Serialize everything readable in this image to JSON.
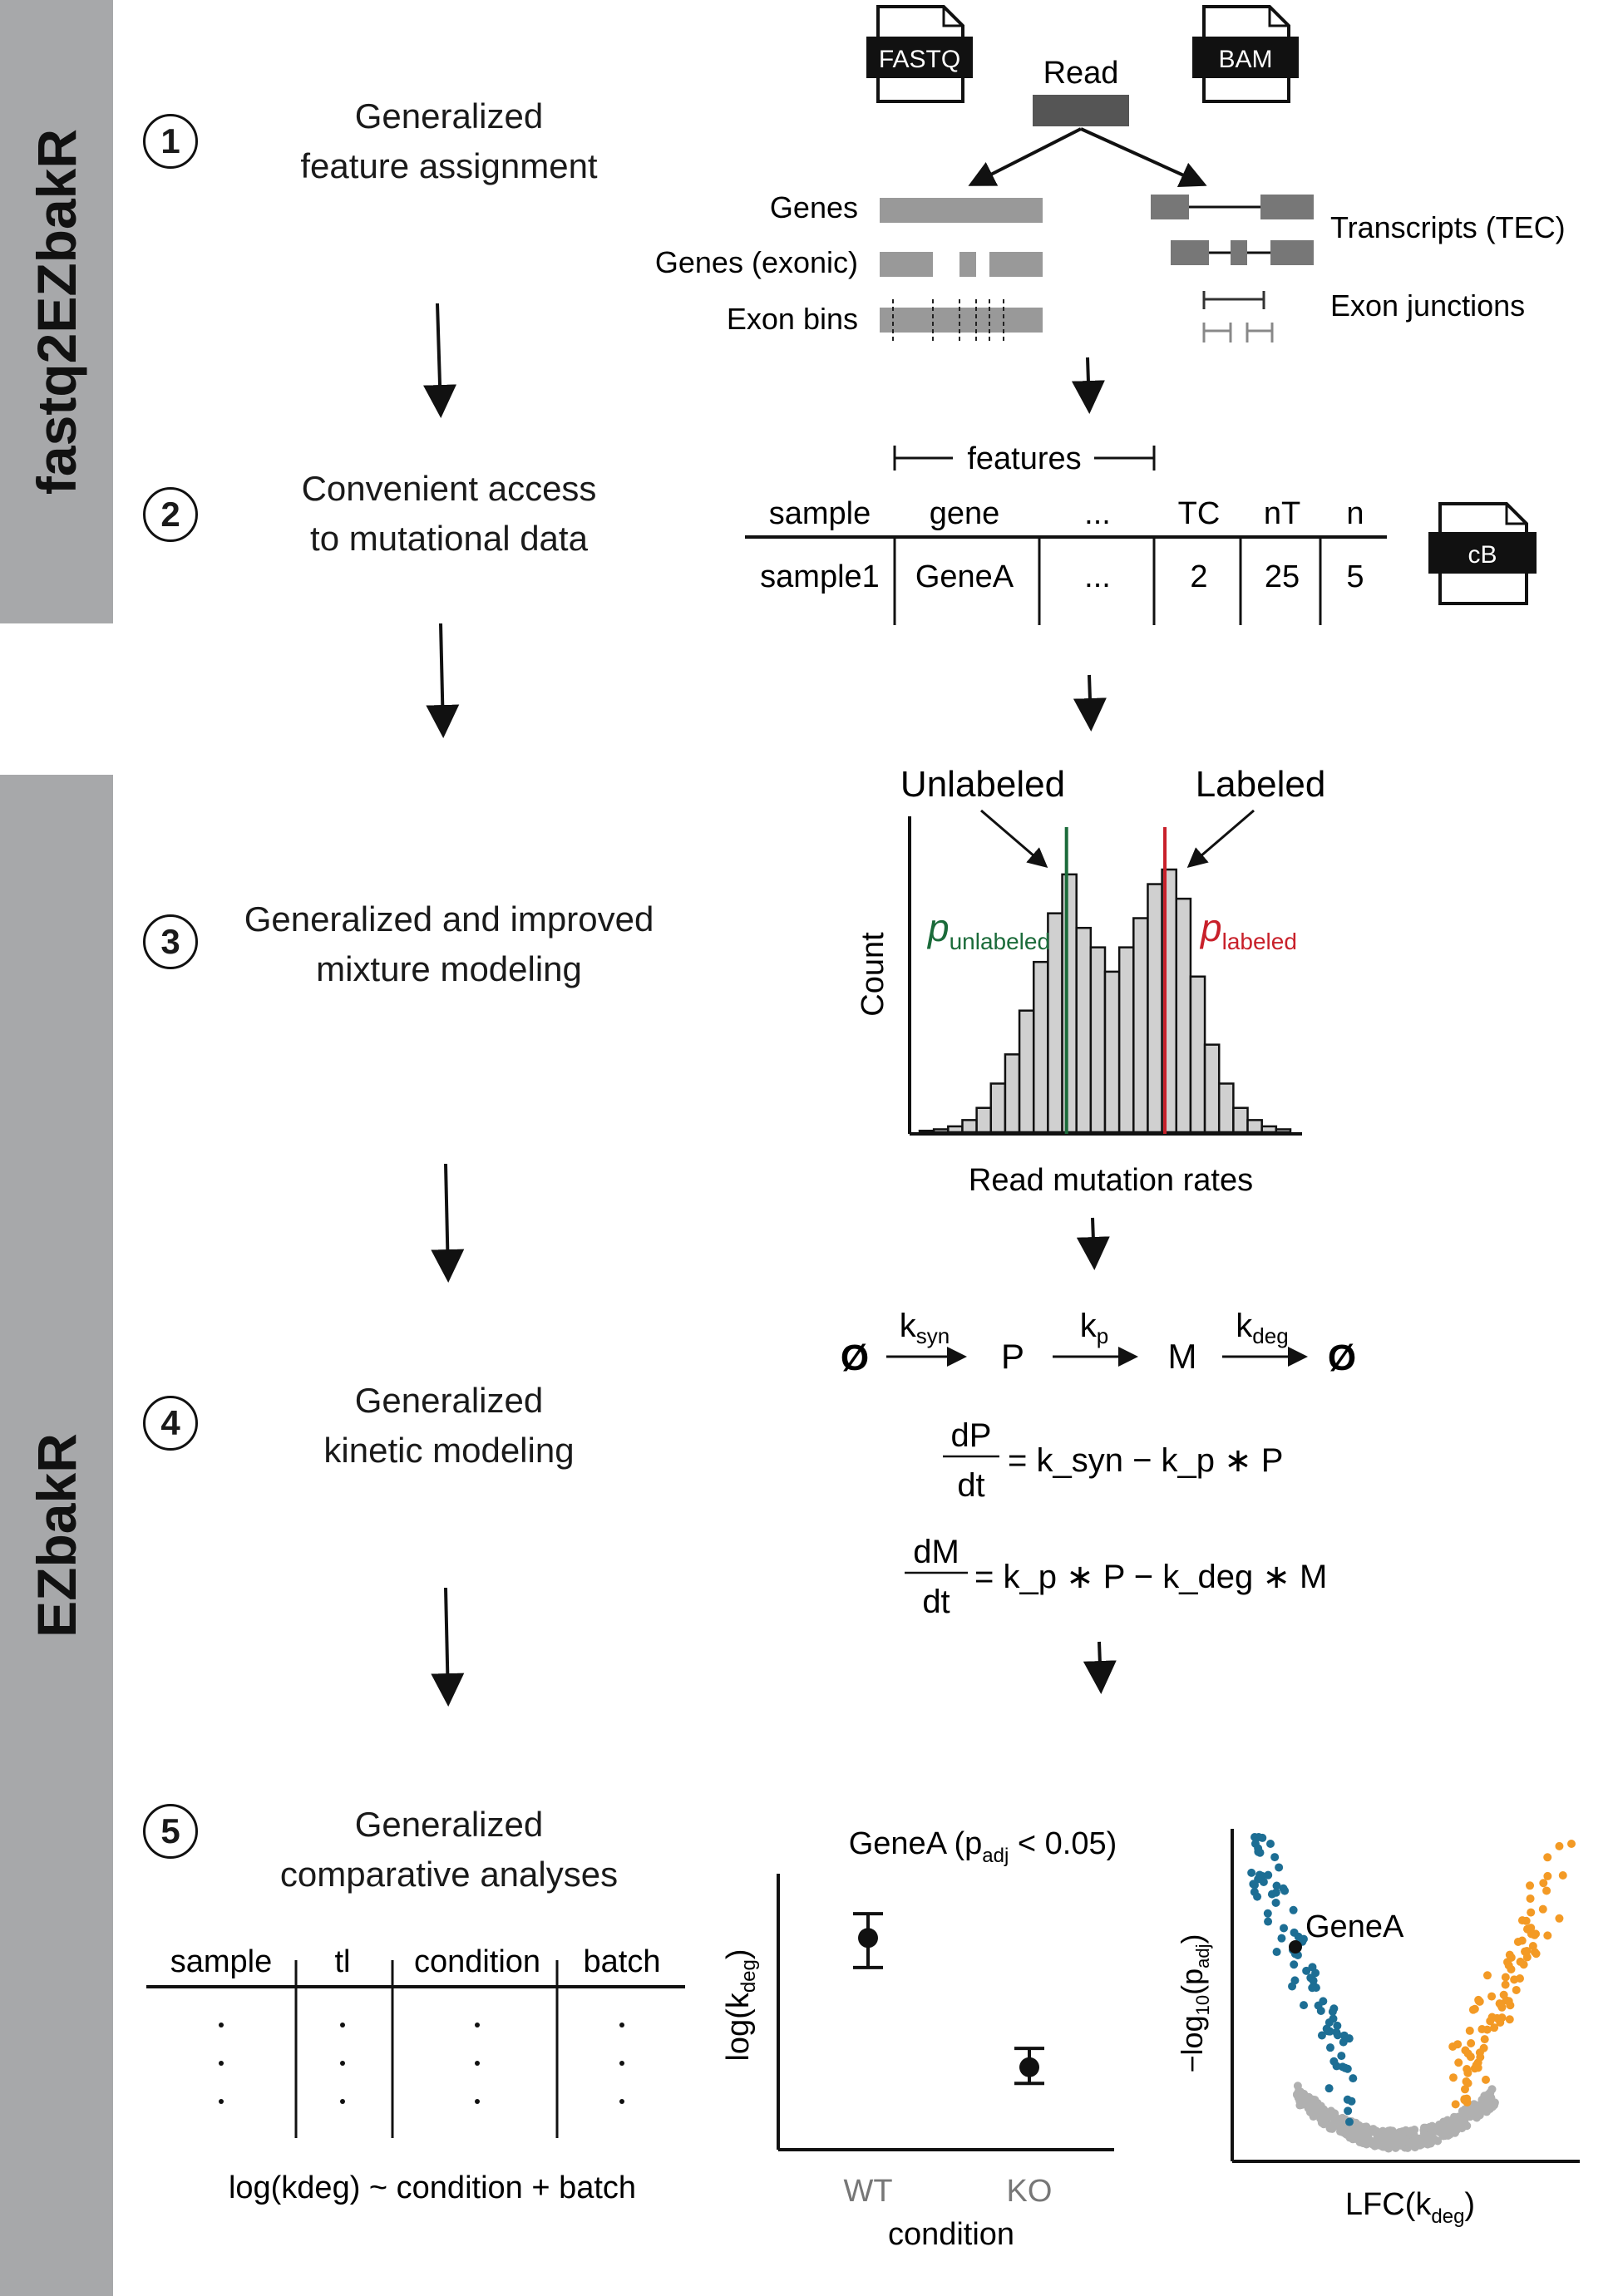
{
  "sidebar": {
    "top_label": "fastq2EZbakR",
    "bottom_label": "EZbakR"
  },
  "steps": [
    {
      "number": "1",
      "title_lines": [
        "Generalized",
        "feature assignment"
      ]
    },
    {
      "number": "2",
      "title_lines": [
        "Convenient access",
        "to mutational data"
      ]
    },
    {
      "number": "3",
      "title_lines": [
        "Generalized and improved",
        "mixture modeling"
      ]
    },
    {
      "number": "4",
      "title_lines": [
        "Generalized",
        "kinetic modeling"
      ]
    },
    {
      "number": "5",
      "title_lines": [
        "Generalized",
        "comparative analyses"
      ]
    }
  ],
  "feature_assignment": {
    "input_files": [
      "FASTQ",
      "BAM"
    ],
    "read_label": "Read",
    "left_features": [
      "Genes",
      "Genes (exonic)",
      "Exon bins"
    ],
    "right_features": [
      "Transcripts (TEC)",
      "Exon junctions"
    ]
  },
  "cb_table": {
    "features_label": "features",
    "headers": [
      "sample",
      "gene",
      "...",
      "TC",
      "nT",
      "n"
    ],
    "row": [
      "sample1",
      "GeneA",
      "...",
      "2",
      "25",
      "5"
    ],
    "file_label": "cB"
  },
  "mixture": {
    "unlabeled_label": "Unlabeled",
    "labeled_label": "Labeled",
    "p_unlabeled_main": "p",
    "p_unlabeled_sub": "unlabeled",
    "p_labeled_main": "p",
    "p_labeled_sub": "labeled",
    "ylabel": "Count",
    "xlabel": "Read mutation rates",
    "colors": {
      "unlabeled": "#1b6b3a",
      "labeled": "#c8202a",
      "bar_fill": "#d0d0d0"
    },
    "chart_data": {
      "type": "bar",
      "title": "",
      "xlabel": "Read mutation rates",
      "ylabel": "Count",
      "values": [
        0.3,
        0.6,
        1.2,
        2.5,
        5,
        10,
        16,
        25,
        35,
        45,
        53,
        42,
        38,
        33,
        38,
        44,
        51,
        54,
        48,
        32,
        18,
        10,
        5,
        2.5,
        1.2,
        0.6
      ],
      "vertical_lines": [
        {
          "name": "p_unlabeled",
          "at_bin": 10.3
        },
        {
          "name": "p_labeled",
          "at_bin": 17.2
        }
      ]
    }
  },
  "kinetics": {
    "states": [
      "Ø",
      "P",
      "M",
      "Ø"
    ],
    "rates": [
      {
        "main": "k",
        "sub": "syn"
      },
      {
        "main": "k",
        "sub": "p"
      },
      {
        "main": "k",
        "sub": "deg"
      }
    ],
    "eq1": {
      "num": "dP",
      "den": "dt",
      "rhs": "= k_syn − k_p ∗ P"
    },
    "eq2": {
      "num": "dM",
      "den": "dt",
      "rhs": "= k_p ∗ P − k_deg ∗ M"
    }
  },
  "comparative_table": {
    "headers": [
      "sample",
      "tl",
      "condition",
      "batch"
    ],
    "formula": "log(kdeg) ~ condition + batch"
  },
  "dot_plot": {
    "title_pre": "GeneA (p",
    "title_sub": "adj",
    "title_post": " < 0.05)",
    "ylabel_main": "log(k",
    "ylabel_sub": "deg",
    "ylabel_end": ")",
    "xlabel": "condition",
    "chart_data": {
      "type": "scatter",
      "categories": [
        "WT",
        "KO"
      ],
      "values": [
        0.78,
        0.3
      ],
      "error_low": [
        0.67,
        0.24
      ],
      "error_high": [
        0.87,
        0.37
      ],
      "xlabel": "condition",
      "ylabel": "log(kdeg)"
    }
  },
  "volcano": {
    "highlight_label": "GeneA",
    "ylabel_pre": "−log",
    "ylabel_base": "10",
    "ylabel_mid": "(p",
    "ylabel_sub": "adj",
    "ylabel_end": ")",
    "xlabel_main": "LFC(k",
    "xlabel_sub": "deg",
    "xlabel_end": ")",
    "colors": {
      "down": "#1d6e94",
      "up": "#f39a25",
      "ns": "#b0b0b0",
      "highlight": "#111111"
    }
  }
}
